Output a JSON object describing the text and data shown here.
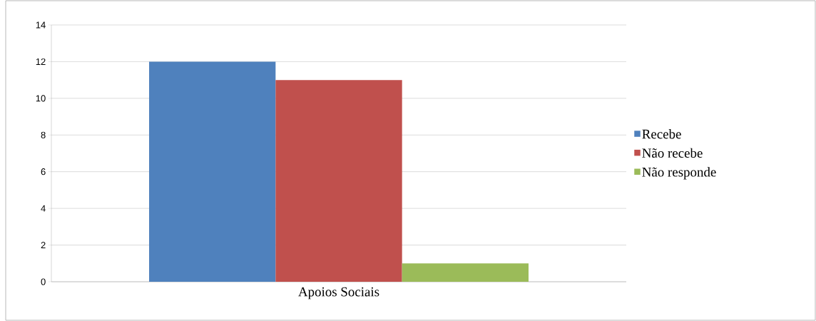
{
  "chart_data": {
    "type": "bar",
    "categories": [
      "Apoios Sociais"
    ],
    "series": [
      {
        "name": "Recebe",
        "color": "#4f81bd",
        "values": [
          12
        ]
      },
      {
        "name": "Não recebe",
        "color": "#c0504d",
        "values": [
          11
        ]
      },
      {
        "name": "Não responde",
        "color": "#9bbb59",
        "values": [
          1
        ]
      }
    ],
    "ylim": [
      0,
      14
    ],
    "yticks": [
      0,
      2,
      4,
      6,
      8,
      10,
      12,
      14
    ],
    "grid": "y",
    "legend": "right"
  }
}
